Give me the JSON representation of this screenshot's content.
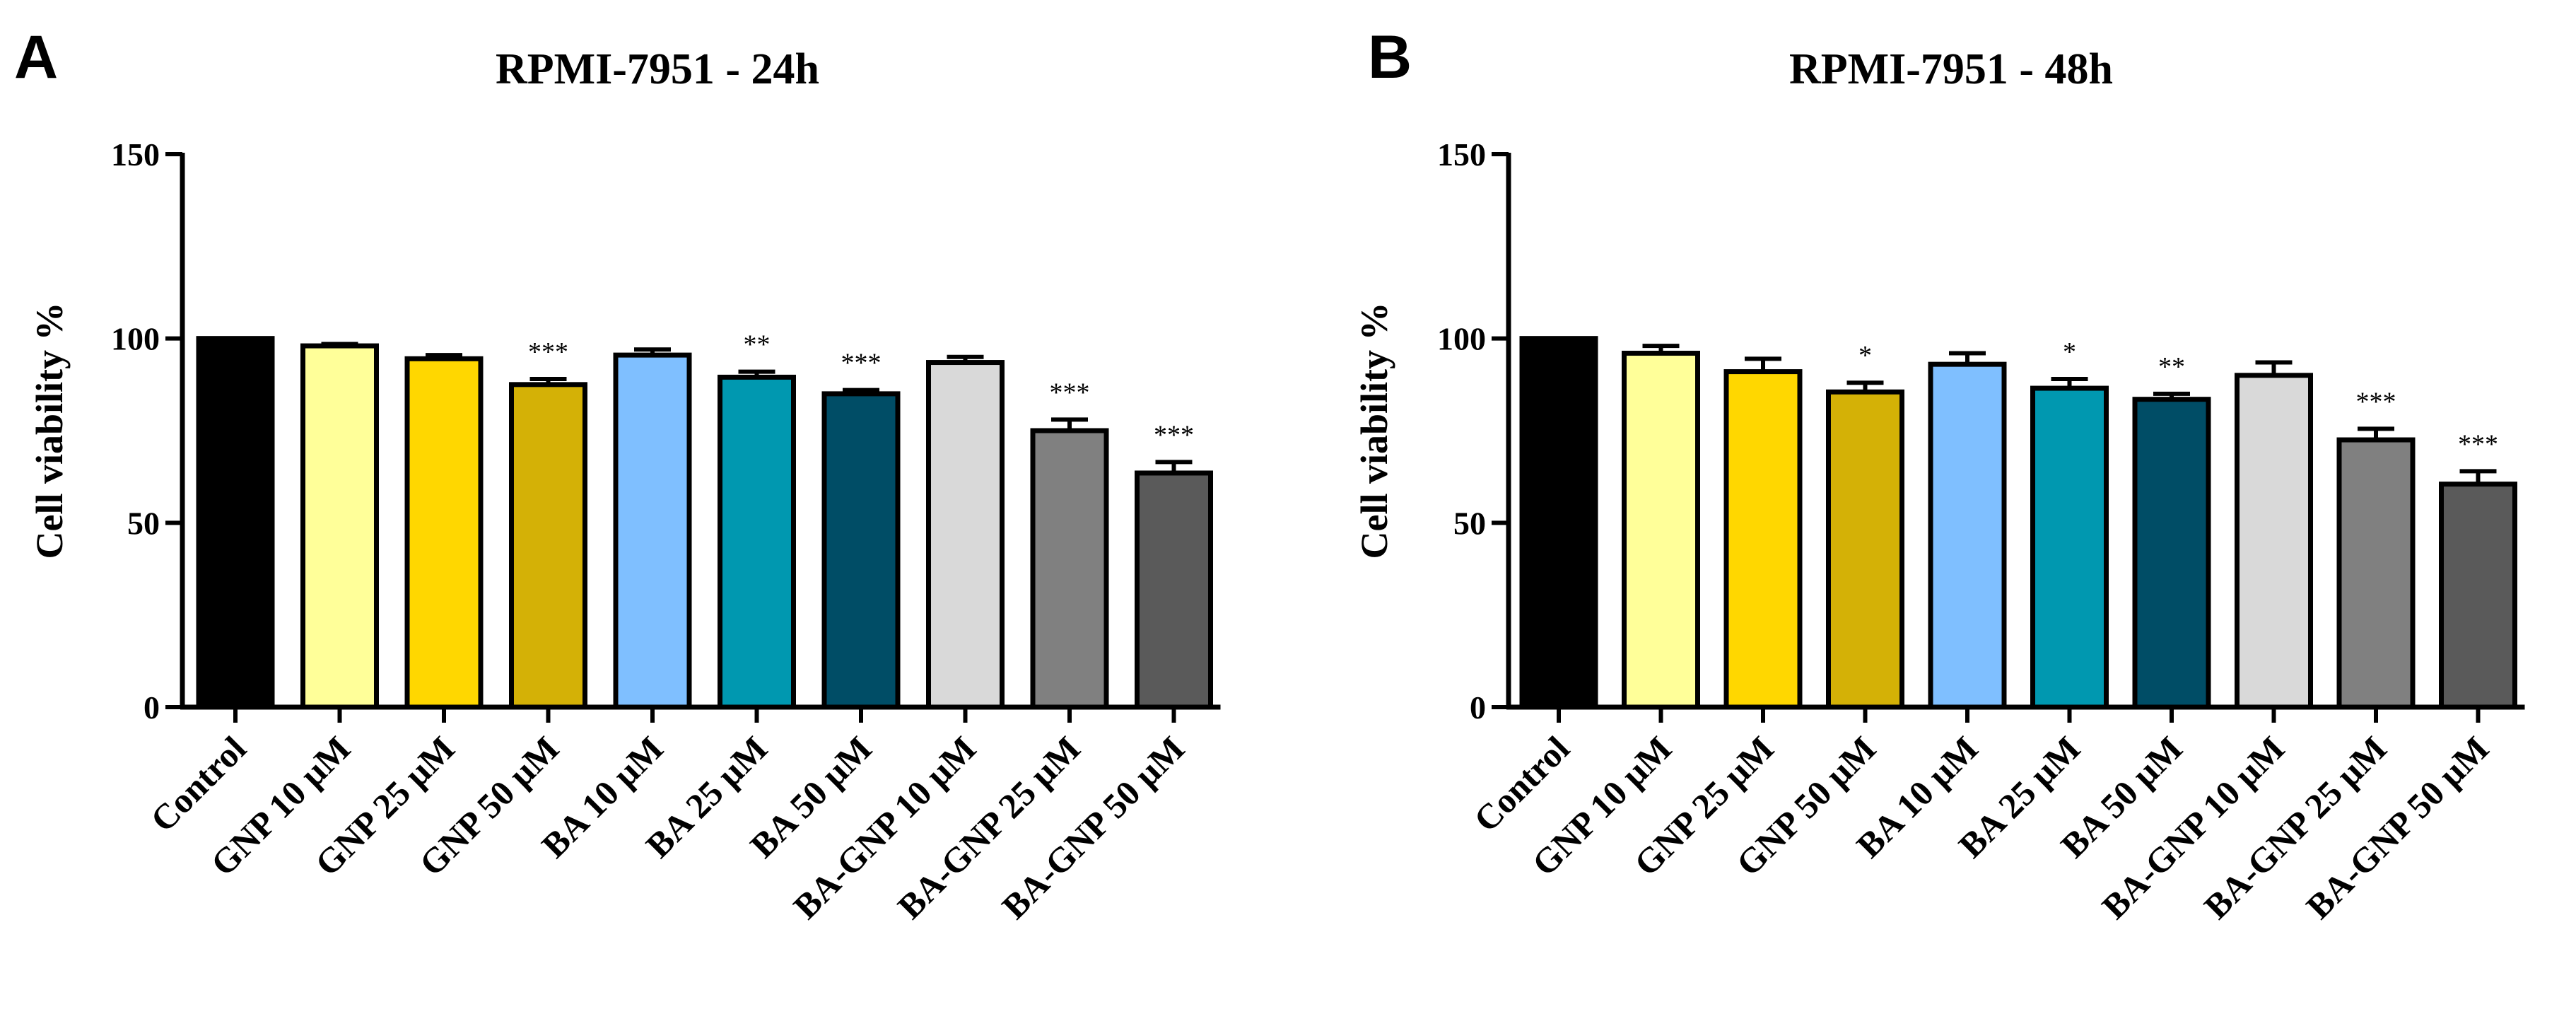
{
  "panels": [
    {
      "letter": "A"
    },
    {
      "letter": "B"
    }
  ],
  "chart_data": [
    {
      "type": "bar",
      "title": "RPMI-7951 - 24h",
      "xlabel": "",
      "ylabel": "Cell viability %",
      "ylim": [
        0,
        150
      ],
      "yticks": [
        "0",
        "50",
        "100",
        "150"
      ],
      "categories": [
        "Control",
        "GNP 10 µM",
        "GNP 25 µM",
        "GNP 50 µM",
        "BA 10 µM",
        "BA 25 µM",
        "BA 50 µM",
        "BA-GNP 10 µM",
        "BA-GNP 25 µM",
        "BA-GNP 50 µM"
      ],
      "values": [
        100,
        98,
        94.5,
        87.5,
        95.5,
        89.5,
        85,
        93.5,
        75,
        63.5
      ],
      "errors": [
        0,
        0.5,
        1,
        1.5,
        1.5,
        1.5,
        1,
        1.5,
        3,
        3
      ],
      "significance": [
        "",
        "",
        "",
        "***",
        "",
        "**",
        "***",
        "",
        "***",
        "***"
      ],
      "colors": [
        "#000000",
        "#ffff99",
        "#ffd700",
        "#d4b106",
        "#7fbfff",
        "#0098b0",
        "#004d66",
        "#d9d9d9",
        "#808080",
        "#5a5a5a"
      ]
    },
    {
      "type": "bar",
      "title": "RPMI-7951 - 48h",
      "xlabel": "",
      "ylabel": "Cell viability %",
      "ylim": [
        0,
        150
      ],
      "yticks": [
        "0",
        "50",
        "100",
        "150"
      ],
      "categories": [
        "Control",
        "GNP 10 µM",
        "GNP 25 µM",
        "GNP 50 µM",
        "BA 10 µM",
        "BA 25 µM",
        "BA 50 µM",
        "BA-GNP 10 µM",
        "BA-GNP 25 µM",
        "BA-GNP 50 µM"
      ],
      "values": [
        100,
        96,
        91,
        85.5,
        93,
        86.5,
        83.5,
        90,
        72.5,
        60.5
      ],
      "errors": [
        0,
        2,
        3.5,
        2.5,
        3,
        2.5,
        1.5,
        3.5,
        3,
        3.5
      ],
      "significance": [
        "",
        "",
        "",
        "*",
        "",
        "*",
        "**",
        "",
        "***",
        "***"
      ],
      "colors": [
        "#000000",
        "#ffff99",
        "#ffd700",
        "#d4b106",
        "#7fbfff",
        "#0098b0",
        "#004d66",
        "#d9d9d9",
        "#808080",
        "#5a5a5a"
      ]
    }
  ]
}
